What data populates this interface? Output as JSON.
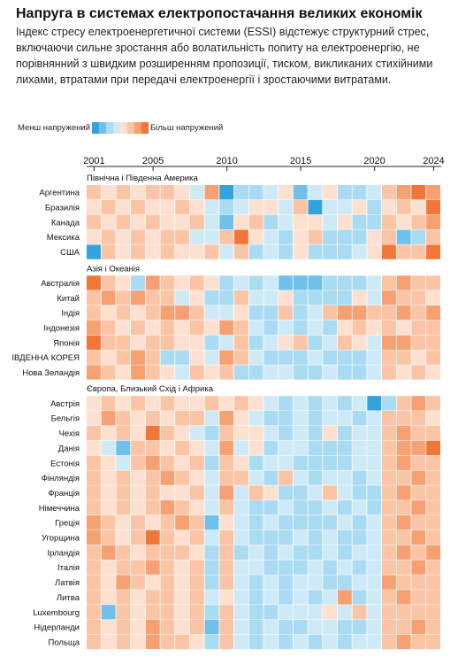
{
  "title": "Напруга в системах електропостачання великих економік",
  "subtitle": "Індекс стресу електроенергетичної системи (ESSI) відстежує структурний стрес, включаючи сильне зростання або волатильність попиту на електроенергію, не порівнянний з швидким розширенням пропозиції, тиском, викликаних стихійними лихами, втратами при передачі електроенергії і зростаючими витратами.",
  "legend": {
    "low_label": "Менш напружений",
    "high_label": "Більш напружений",
    "colors": [
      "#33a3de",
      "#6fc0ea",
      "#a9dbf3",
      "#cfeaf7",
      "#fde0cf",
      "#fbc4a4",
      "#f7a071",
      "#f2763a"
    ]
  },
  "chart_data": {
    "type": "heatmap",
    "title": "Напруга в системах електропостачання великих економік",
    "x_tick_labels": [
      "2001",
      "2005",
      "2010",
      "2015",
      "2020",
      "2024"
    ],
    "years": [
      2001,
      2002,
      2003,
      2004,
      2005,
      2006,
      2007,
      2008,
      2009,
      2010,
      2011,
      2012,
      2013,
      2014,
      2015,
      2016,
      2017,
      2018,
      2019,
      2020,
      2021,
      2022,
      2023,
      2024
    ],
    "value_scale": "discrete stress levels -4 (less stressed) to +4 (more stressed), no zero level",
    "groups": [
      {
        "name": "Північна і Південна Америка",
        "rows": [
          {
            "country": "Аргентина",
            "values": [
              2,
              1,
              2,
              1,
              2,
              2,
              1,
              -1,
              3,
              -4,
              -2,
              -2,
              -1,
              1,
              -3,
              -1,
              1,
              -2,
              -2,
              -1,
              2,
              3,
              4,
              3
            ]
          },
          {
            "country": "Бразилія",
            "values": [
              1,
              2,
              1,
              2,
              1,
              1,
              2,
              1,
              -1,
              -2,
              -1,
              1,
              1,
              -1,
              2,
              -4,
              -1,
              -1,
              1,
              -2,
              1,
              2,
              1,
              4
            ]
          },
          {
            "country": "Канада",
            "values": [
              2,
              1,
              2,
              1,
              2,
              1,
              1,
              2,
              -1,
              -3,
              1,
              2,
              -2,
              -1,
              1,
              1,
              -1,
              1,
              -2,
              -2,
              2,
              1,
              2,
              3
            ]
          },
          {
            "country": "Мексика",
            "values": [
              1,
              2,
              1,
              2,
              1,
              2,
              2,
              -1,
              -1,
              2,
              4,
              1,
              -1,
              -2,
              1,
              2,
              -2,
              -2,
              -2,
              1,
              2,
              -3,
              -2,
              2
            ]
          },
          {
            "country": "США",
            "values": [
              -4,
              2,
              1,
              2,
              1,
              2,
              1,
              1,
              2,
              -1,
              2,
              -2,
              -1,
              -2,
              1,
              -2,
              -2,
              -2,
              -1,
              1,
              4,
              2,
              2,
              4
            ]
          }
        ]
      },
      {
        "name": "Азія і Океанія",
        "rows": [
          {
            "country": "Австралія",
            "values": [
              4,
              2,
              1,
              -2,
              3,
              2,
              1,
              2,
              1,
              -2,
              -1,
              -2,
              -1,
              -3,
              -3,
              -3,
              -2,
              -2,
              -2,
              -1,
              2,
              3,
              2,
              2
            ]
          },
          {
            "country": "Китай",
            "values": [
              2,
              3,
              2,
              3,
              2,
              2,
              -1,
              1,
              -2,
              -2,
              2,
              -1,
              -1,
              1,
              -2,
              -2,
              -2,
              -2,
              1,
              -1,
              3,
              2,
              2,
              1
            ]
          },
          {
            "country": "Індія",
            "values": [
              2,
              1,
              2,
              1,
              2,
              3,
              3,
              2,
              -1,
              -1,
              1,
              -2,
              -2,
              2,
              -2,
              -1,
              2,
              3,
              3,
              2,
              2,
              3,
              2,
              3
            ]
          },
          {
            "country": "Індонезія",
            "values": [
              3,
              2,
              1,
              2,
              1,
              2,
              1,
              2,
              1,
              3,
              2,
              -1,
              -2,
              -1,
              -2,
              -1,
              -2,
              1,
              2,
              1,
              2,
              1,
              2,
              2
            ]
          },
          {
            "country": "Японія",
            "values": [
              4,
              2,
              2,
              1,
              2,
              2,
              1,
              1,
              -2,
              -1,
              2,
              -2,
              -1,
              1,
              2,
              -2,
              -1,
              2,
              1,
              -1,
              3,
              3,
              2,
              2
            ]
          },
          {
            "country": "ІВДЕННА КОРЕЯ",
            "values": [
              2,
              1,
              2,
              3,
              2,
              -2,
              -2,
              1,
              -1,
              3,
              2,
              -1,
              -2,
              -2,
              -2,
              -1,
              -2,
              -2,
              -2,
              -1,
              2,
              2,
              1,
              2
            ]
          },
          {
            "country": "Нова Зеландія",
            "values": [
              3,
              2,
              1,
              3,
              2,
              1,
              -1,
              2,
              1,
              2,
              -2,
              -2,
              -1,
              -1,
              -2,
              -2,
              -1,
              -2,
              -2,
              -1,
              2,
              1,
              2,
              1
            ]
          }
        ]
      },
      {
        "name": "Європа, Близький Схід і Африка",
        "rows": [
          {
            "country": "Австрія",
            "values": [
              1,
              2,
              1,
              2,
              1,
              2,
              1,
              1,
              2,
              1,
              2,
              1,
              -1,
              -2,
              -1,
              -2,
              -1,
              -2,
              -1,
              -4,
              -2,
              2,
              3,
              2
            ]
          },
          {
            "country": "Бельгія",
            "values": [
              1,
              3,
              2,
              1,
              2,
              1,
              2,
              2,
              -1,
              3,
              1,
              -1,
              -2,
              -2,
              -1,
              -2,
              -1,
              -1,
              -2,
              -1,
              2,
              2,
              2,
              1
            ]
          },
          {
            "country": "Чехія",
            "values": [
              2,
              1,
              2,
              1,
              4,
              2,
              1,
              -1,
              -2,
              2,
              1,
              1,
              -1,
              -2,
              -1,
              -2,
              1,
              -2,
              -1,
              -1,
              2,
              3,
              2,
              2
            ]
          },
          {
            "country": "Данія",
            "values": [
              1,
              -1,
              -3,
              2,
              2,
              1,
              2,
              1,
              -1,
              3,
              -1,
              1,
              -2,
              -1,
              -1,
              -2,
              -2,
              -2,
              -1,
              -1,
              2,
              3,
              3,
              4
            ]
          },
          {
            "country": "Естонія",
            "values": [
              2,
              1,
              -1,
              2,
              3,
              2,
              1,
              2,
              -2,
              2,
              1,
              -2,
              -1,
              -1,
              -2,
              -2,
              -2,
              -2,
              -1,
              -1,
              2,
              3,
              2,
              2
            ]
          },
          {
            "country": "Фінляндія",
            "values": [
              2,
              1,
              2,
              1,
              2,
              3,
              2,
              1,
              -1,
              2,
              2,
              -1,
              -2,
              2,
              -1,
              -2,
              -1,
              -1,
              -2,
              -1,
              2,
              2,
              3,
              2
            ]
          },
          {
            "country": "Франція",
            "values": [
              2,
              1,
              2,
              1,
              2,
              1,
              1,
              2,
              -1,
              3,
              -1,
              2,
              1,
              -2,
              -2,
              -1,
              2,
              -1,
              -2,
              -2,
              2,
              3,
              2,
              2
            ]
          },
          {
            "country": "Німеччина",
            "values": [
              2,
              1,
              2,
              1,
              2,
              3,
              2,
              1,
              -1,
              2,
              -1,
              -2,
              -2,
              -1,
              -2,
              -2,
              -1,
              -2,
              -1,
              -2,
              2,
              2,
              3,
              2
            ]
          },
          {
            "country": "Греція",
            "values": [
              3,
              2,
              1,
              2,
              1,
              2,
              3,
              2,
              -3,
              1,
              -1,
              -2,
              -1,
              -2,
              -2,
              -2,
              -2,
              -1,
              -2,
              -1,
              2,
              3,
              2,
              2
            ]
          },
          {
            "country": "Угорщина",
            "values": [
              3,
              2,
              1,
              2,
              4,
              2,
              1,
              2,
              -1,
              2,
              -1,
              -2,
              -2,
              -2,
              -1,
              -2,
              -1,
              -2,
              -2,
              -1,
              2,
              2,
              3,
              2
            ]
          },
          {
            "country": "Ірландія",
            "values": [
              2,
              3,
              2,
              1,
              2,
              2,
              2,
              1,
              -2,
              2,
              -2,
              -1,
              -2,
              -1,
              -2,
              -2,
              -1,
              -2,
              -1,
              -1,
              2,
              3,
              2,
              3
            ]
          },
          {
            "country": "Італія",
            "values": [
              2,
              1,
              2,
              2,
              3,
              2,
              1,
              2,
              -2,
              2,
              -1,
              -1,
              -2,
              -2,
              -2,
              -1,
              -2,
              -1,
              -2,
              -1,
              2,
              2,
              3,
              2
            ]
          },
          {
            "country": "Латвія",
            "values": [
              2,
              1,
              3,
              2,
              1,
              2,
              1,
              2,
              -2,
              2,
              -1,
              -2,
              -1,
              -2,
              -1,
              -1,
              -2,
              -2,
              -1,
              -1,
              3,
              2,
              2,
              2
            ]
          },
          {
            "country": "Литва",
            "values": [
              2,
              1,
              2,
              1,
              2,
              2,
              1,
              2,
              -1,
              1,
              -1,
              -2,
              -1,
              -2,
              -1,
              -2,
              -1,
              3,
              -2,
              -1,
              2,
              3,
              2,
              2
            ]
          },
          {
            "country": "Luxembourg",
            "values": [
              2,
              -3,
              2,
              1,
              2,
              2,
              1,
              2,
              -2,
              2,
              -1,
              -2,
              -2,
              -1,
              -1,
              -1,
              1,
              -1,
              2,
              -1,
              2,
              2,
              2,
              2
            ]
          },
          {
            "country": "Нідерланди",
            "values": [
              2,
              1,
              2,
              1,
              3,
              2,
              1,
              2,
              -3,
              2,
              -1,
              -2,
              -1,
              -2,
              -2,
              -1,
              -1,
              -2,
              -2,
              -1,
              2,
              2,
              3,
              2
            ]
          },
          {
            "country": "Польща",
            "values": [
              2,
              1,
              2,
              1,
              3,
              2,
              2,
              1,
              -2,
              2,
              -1,
              -2,
              -1,
              -2,
              -1,
              -2,
              -1,
              -2,
              -1,
              -1,
              2,
              3,
              2,
              2
            ]
          }
        ]
      }
    ]
  }
}
